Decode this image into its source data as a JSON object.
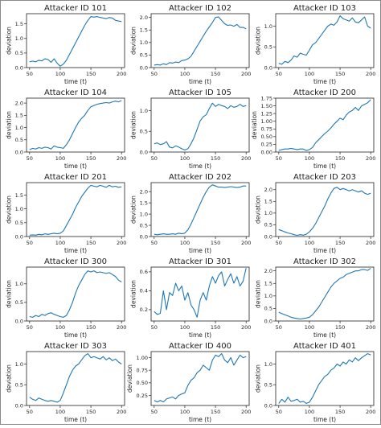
{
  "colors": {
    "line": "#1f77b4",
    "axes": "#222222",
    "background": "#ffffff"
  },
  "chart_data": [
    {
      "type": "line",
      "title": "Attacker ID 101",
      "xlabel": "time (t)",
      "ylabel": "deviation",
      "xlim": [
        45,
        205
      ],
      "ylim": [
        0,
        1.85
      ],
      "x_ticks": [
        "50",
        "100",
        "150",
        "200"
      ],
      "y_ticks": [
        "0.0",
        "0.5",
        "1.0",
        "1.5"
      ],
      "x": [
        50,
        55,
        60,
        65,
        70,
        75,
        80,
        85,
        90,
        95,
        100,
        105,
        110,
        115,
        120,
        125,
        130,
        135,
        140,
        145,
        150,
        155,
        160,
        165,
        170,
        175,
        180,
        185,
        190,
        195,
        200
      ],
      "y": [
        0.2,
        0.22,
        0.2,
        0.25,
        0.23,
        0.3,
        0.28,
        0.18,
        0.3,
        0.15,
        0.05,
        0.12,
        0.25,
        0.45,
        0.65,
        0.85,
        1.05,
        1.25,
        1.45,
        1.62,
        1.75,
        1.73,
        1.75,
        1.72,
        1.7,
        1.68,
        1.72,
        1.7,
        1.62,
        1.6,
        1.58
      ]
    },
    {
      "type": "line",
      "title": "Attacker ID 102",
      "xlabel": "time (t)",
      "ylabel": "deviation",
      "xlim": [
        45,
        205
      ],
      "ylim": [
        0,
        2.15
      ],
      "x_ticks": [
        "50",
        "100",
        "150",
        "200"
      ],
      "y_ticks": [
        "0.0",
        "0.5",
        "1.0",
        "1.5",
        "2.0"
      ],
      "x": [
        50,
        55,
        60,
        65,
        70,
        75,
        80,
        85,
        90,
        95,
        100,
        105,
        110,
        115,
        120,
        125,
        130,
        135,
        140,
        145,
        150,
        155,
        160,
        165,
        170,
        175,
        180,
        185,
        190,
        195,
        200
      ],
      "y": [
        0.1,
        0.12,
        0.1,
        0.15,
        0.12,
        0.2,
        0.18,
        0.22,
        0.2,
        0.28,
        0.3,
        0.35,
        0.45,
        0.65,
        0.85,
        1.05,
        1.25,
        1.45,
        1.62,
        1.8,
        2.0,
        2.02,
        1.88,
        1.75,
        1.68,
        1.7,
        1.65,
        1.72,
        1.6,
        1.6,
        1.55
      ]
    },
    {
      "type": "line",
      "title": "Attacker ID 103",
      "xlabel": "time (t)",
      "ylabel": "deviation",
      "xlim": [
        45,
        205
      ],
      "ylim": [
        0,
        1.3
      ],
      "x_ticks": [
        "50",
        "100",
        "150",
        "200"
      ],
      "y_ticks": [
        "0.0",
        "0.5",
        "1.0"
      ],
      "x": [
        50,
        55,
        60,
        65,
        70,
        75,
        80,
        85,
        90,
        95,
        100,
        105,
        110,
        115,
        120,
        125,
        130,
        135,
        140,
        145,
        150,
        155,
        160,
        165,
        170,
        175,
        180,
        185,
        190,
        195,
        200
      ],
      "y": [
        0.1,
        0.08,
        0.15,
        0.12,
        0.18,
        0.28,
        0.25,
        0.35,
        0.32,
        0.3,
        0.42,
        0.55,
        0.6,
        0.7,
        0.8,
        0.9,
        1.0,
        1.05,
        1.02,
        1.1,
        1.25,
        1.18,
        1.15,
        1.12,
        1.2,
        1.1,
        1.08,
        1.15,
        1.22,
        1.0,
        0.95
      ]
    },
    {
      "type": "line",
      "title": "Attacker ID 104",
      "xlabel": "time (t)",
      "ylabel": "deviation",
      "xlim": [
        45,
        205
      ],
      "ylim": [
        0,
        2.2
      ],
      "x_ticks": [
        "50",
        "100",
        "150",
        "200"
      ],
      "y_ticks": [
        "0.0",
        "0.5",
        "1.0",
        "1.5",
        "2.0"
      ],
      "x": [
        50,
        55,
        60,
        65,
        70,
        75,
        80,
        85,
        90,
        95,
        100,
        105,
        110,
        115,
        120,
        125,
        130,
        135,
        140,
        145,
        150,
        155,
        160,
        165,
        170,
        175,
        180,
        185,
        190,
        195,
        200
      ],
      "y": [
        0.1,
        0.15,
        0.12,
        0.18,
        0.15,
        0.2,
        0.18,
        0.12,
        0.25,
        0.2,
        0.18,
        0.15,
        0.3,
        0.5,
        0.75,
        1.0,
        1.22,
        1.38,
        1.5,
        1.7,
        1.85,
        1.9,
        1.95,
        1.98,
        2.0,
        2.02,
        2.0,
        2.05,
        2.08,
        2.05,
        2.1
      ]
    },
    {
      "type": "line",
      "title": "Attacker ID 105",
      "xlabel": "time (t)",
      "ylabel": "deviation",
      "xlim": [
        45,
        205
      ],
      "ylim": [
        0,
        1.3
      ],
      "x_ticks": [
        "50",
        "100",
        "150",
        "200"
      ],
      "y_ticks": [
        "0.0",
        "0.5",
        "1.0"
      ],
      "x": [
        50,
        55,
        60,
        65,
        70,
        75,
        80,
        85,
        90,
        95,
        100,
        105,
        110,
        115,
        120,
        125,
        130,
        135,
        140,
        145,
        150,
        155,
        160,
        165,
        170,
        175,
        180,
        185,
        190,
        195,
        200
      ],
      "y": [
        0.2,
        0.22,
        0.18,
        0.2,
        0.25,
        0.12,
        0.1,
        0.15,
        0.12,
        0.08,
        0.05,
        0.08,
        0.2,
        0.35,
        0.55,
        0.75,
        0.85,
        0.9,
        1.05,
        1.18,
        1.1,
        1.15,
        1.12,
        1.1,
        1.05,
        1.12,
        1.08,
        1.1,
        1.15,
        1.1,
        1.12
      ]
    },
    {
      "type": "line",
      "title": "Attacker ID 200",
      "xlabel": "time (t)",
      "ylabel": "deviation",
      "xlim": [
        45,
        205
      ],
      "ylim": [
        0,
        1.75
      ],
      "x_ticks": [
        "50",
        "100",
        "150",
        "200"
      ],
      "y_ticks": [
        "0.00",
        "0.25",
        "0.50",
        "0.75",
        "1.00",
        "1.25",
        "1.50",
        "1.75"
      ],
      "x": [
        50,
        55,
        60,
        65,
        70,
        75,
        80,
        85,
        90,
        95,
        100,
        105,
        110,
        115,
        120,
        125,
        130,
        135,
        140,
        145,
        150,
        155,
        160,
        165,
        170,
        175,
        180,
        185,
        190,
        195,
        200
      ],
      "y": [
        0.05,
        0.08,
        0.1,
        0.1,
        0.12,
        0.1,
        0.08,
        0.1,
        0.1,
        0.05,
        0.08,
        0.15,
        0.3,
        0.4,
        0.5,
        0.6,
        0.68,
        0.78,
        0.9,
        1.0,
        1.1,
        1.05,
        1.2,
        1.3,
        1.35,
        1.45,
        1.35,
        1.5,
        1.55,
        1.6,
        1.7
      ]
    },
    {
      "type": "line",
      "title": "Attacker ID 201",
      "xlabel": "time (t)",
      "ylabel": "deviation",
      "xlim": [
        45,
        205
      ],
      "ylim": [
        0,
        1.95
      ],
      "x_ticks": [
        "50",
        "100",
        "150",
        "200"
      ],
      "y_ticks": [
        "0.0",
        "0.5",
        "1.0",
        "1.5"
      ],
      "x": [
        50,
        55,
        60,
        65,
        70,
        75,
        80,
        85,
        90,
        95,
        100,
        105,
        110,
        115,
        120,
        125,
        130,
        135,
        140,
        145,
        150,
        155,
        160,
        165,
        170,
        175,
        180,
        185,
        190,
        195,
        200
      ],
      "y": [
        0.05,
        0.06,
        0.05,
        0.08,
        0.06,
        0.1,
        0.08,
        0.1,
        0.12,
        0.1,
        0.12,
        0.2,
        0.4,
        0.6,
        0.8,
        1.05,
        1.25,
        1.45,
        1.6,
        1.75,
        1.85,
        1.82,
        1.8,
        1.85,
        1.82,
        1.78,
        1.85,
        1.8,
        1.82,
        1.78,
        1.8
      ]
    },
    {
      "type": "line",
      "title": "Attacker ID 202",
      "xlabel": "time (t)",
      "ylabel": "deviation",
      "xlim": [
        45,
        205
      ],
      "ylim": [
        0,
        2.4
      ],
      "x_ticks": [
        "50",
        "100",
        "150",
        "200"
      ],
      "y_ticks": [
        "0.0",
        "0.5",
        "1.0",
        "1.5",
        "2.0"
      ],
      "x": [
        50,
        55,
        60,
        65,
        70,
        75,
        80,
        85,
        90,
        95,
        100,
        105,
        110,
        115,
        120,
        125,
        130,
        135,
        140,
        145,
        150,
        155,
        160,
        165,
        170,
        175,
        180,
        185,
        190,
        195,
        200
      ],
      "y": [
        0.1,
        0.08,
        0.1,
        0.12,
        0.1,
        0.1,
        0.12,
        0.1,
        0.15,
        0.12,
        0.15,
        0.3,
        0.55,
        0.85,
        1.15,
        1.45,
        1.75,
        2.0,
        2.2,
        2.3,
        2.25,
        2.2,
        2.2,
        2.18,
        2.2,
        2.22,
        2.2,
        2.18,
        2.2,
        2.25,
        2.25
      ]
    },
    {
      "type": "line",
      "title": "Attacker ID 203",
      "xlabel": "time (t)",
      "ylabel": "deviation",
      "xlim": [
        45,
        205
      ],
      "ylim": [
        0,
        2.3
      ],
      "x_ticks": [
        "50",
        "100",
        "150",
        "200"
      ],
      "y_ticks": [
        "0.0",
        "0.5",
        "1.0",
        "1.5",
        "2.0"
      ],
      "x": [
        50,
        55,
        60,
        65,
        70,
        75,
        80,
        85,
        90,
        95,
        100,
        105,
        110,
        115,
        120,
        125,
        130,
        135,
        140,
        145,
        150,
        155,
        160,
        165,
        170,
        175,
        180,
        185,
        190,
        195,
        200
      ],
      "y": [
        0.3,
        0.25,
        0.2,
        0.15,
        0.12,
        0.08,
        0.05,
        0.08,
        0.06,
        0.1,
        0.2,
        0.35,
        0.55,
        0.8,
        1.05,
        1.3,
        1.6,
        1.85,
        2.05,
        2.1,
        2.0,
        2.05,
        2.0,
        1.95,
        2.0,
        1.95,
        1.9,
        1.95,
        1.85,
        1.8,
        1.85
      ]
    },
    {
      "type": "line",
      "title": "Attacker ID 300",
      "xlabel": "time (t)",
      "ylabel": "deviation",
      "xlim": [
        45,
        205
      ],
      "ylim": [
        0,
        1.45
      ],
      "x_ticks": [
        "50",
        "100",
        "150",
        "200"
      ],
      "y_ticks": [
        "0.0",
        "0.5",
        "1.0"
      ],
      "x": [
        50,
        55,
        60,
        65,
        70,
        75,
        80,
        85,
        90,
        95,
        100,
        105,
        110,
        115,
        120,
        125,
        130,
        135,
        140,
        145,
        150,
        155,
        160,
        165,
        170,
        175,
        180,
        185,
        190,
        195,
        200
      ],
      "y": [
        0.12,
        0.1,
        0.15,
        0.12,
        0.18,
        0.15,
        0.2,
        0.22,
        0.18,
        0.15,
        0.12,
        0.1,
        0.15,
        0.3,
        0.5,
        0.75,
        0.95,
        1.1,
        1.25,
        1.35,
        1.32,
        1.35,
        1.3,
        1.32,
        1.3,
        1.28,
        1.3,
        1.25,
        1.2,
        1.1,
        1.05
      ]
    },
    {
      "type": "line",
      "title": "Attacker ID 301",
      "xlabel": "time (t)",
      "ylabel": "deviation",
      "xlim": [
        45,
        205
      ],
      "ylim": [
        0.08,
        0.65
      ],
      "x_ticks": [
        "50",
        "100",
        "150",
        "200"
      ],
      "y_ticks": [
        "0.2",
        "0.4",
        "0.6"
      ],
      "x": [
        50,
        55,
        60,
        65,
        70,
        75,
        80,
        85,
        90,
        95,
        100,
        105,
        110,
        115,
        120,
        125,
        130,
        135,
        140,
        145,
        150,
        155,
        160,
        165,
        170,
        175,
        180,
        185,
        190,
        195,
        200
      ],
      "y": [
        0.18,
        0.15,
        0.16,
        0.4,
        0.2,
        0.38,
        0.35,
        0.48,
        0.4,
        0.45,
        0.3,
        0.38,
        0.25,
        0.2,
        0.12,
        0.3,
        0.38,
        0.3,
        0.45,
        0.55,
        0.48,
        0.56,
        0.6,
        0.45,
        0.52,
        0.58,
        0.48,
        0.55,
        0.45,
        0.5,
        0.64
      ]
    },
    {
      "type": "line",
      "title": "Attacker ID 302",
      "xlabel": "time (t)",
      "ylabel": "deviation",
      "xlim": [
        45,
        205
      ],
      "ylim": [
        0,
        2.15
      ],
      "x_ticks": [
        "50",
        "100",
        "150",
        "200"
      ],
      "y_ticks": [
        "0.0",
        "0.5",
        "1.0",
        "1.5",
        "2.0"
      ],
      "x": [
        50,
        55,
        60,
        65,
        70,
        75,
        80,
        85,
        90,
        95,
        100,
        105,
        110,
        115,
        120,
        125,
        130,
        135,
        140,
        145,
        150,
        155,
        160,
        165,
        170,
        175,
        180,
        185,
        190,
        195,
        200
      ],
      "y": [
        0.35,
        0.3,
        0.25,
        0.2,
        0.15,
        0.12,
        0.1,
        0.08,
        0.1,
        0.12,
        0.15,
        0.25,
        0.4,
        0.55,
        0.75,
        0.95,
        1.15,
        1.35,
        1.5,
        1.6,
        1.7,
        1.75,
        1.85,
        1.9,
        1.95,
        2.0,
        2.0,
        2.05,
        2.05,
        2.02,
        2.1
      ]
    },
    {
      "type": "line",
      "title": "Attacker ID 303",
      "xlabel": "time (t)",
      "ylabel": "deviation",
      "xlim": [
        45,
        205
      ],
      "ylim": [
        0,
        1.3
      ],
      "x_ticks": [
        "50",
        "100",
        "150",
        "200"
      ],
      "y_ticks": [
        "0.0",
        "0.5",
        "1.0"
      ],
      "x": [
        50,
        55,
        60,
        65,
        70,
        75,
        80,
        85,
        90,
        95,
        100,
        105,
        110,
        115,
        120,
        125,
        130,
        135,
        140,
        145,
        150,
        155,
        160,
        165,
        170,
        175,
        180,
        185,
        190,
        195,
        200
      ],
      "y": [
        0.2,
        0.15,
        0.12,
        0.18,
        0.15,
        0.12,
        0.1,
        0.12,
        0.1,
        0.08,
        0.12,
        0.3,
        0.5,
        0.7,
        0.85,
        0.95,
        1.0,
        1.1,
        1.2,
        1.25,
        1.15,
        1.18,
        1.15,
        1.12,
        1.18,
        1.1,
        1.15,
        1.08,
        1.12,
        1.05,
        1.0
      ]
    },
    {
      "type": "line",
      "title": "Attacker ID 400",
      "xlabel": "time (t)",
      "ylabel": "deviation",
      "xlim": [
        45,
        205
      ],
      "ylim": [
        0.05,
        1.12
      ],
      "x_ticks": [
        "50",
        "100",
        "150",
        "200"
      ],
      "y_ticks": [
        "0.25",
        "0.50",
        "0.75",
        "1.00"
      ],
      "x": [
        50,
        55,
        60,
        65,
        70,
        75,
        80,
        85,
        90,
        95,
        100,
        105,
        110,
        115,
        120,
        125,
        130,
        135,
        140,
        145,
        150,
        155,
        160,
        165,
        170,
        175,
        180,
        185,
        190,
        195,
        200
      ],
      "y": [
        0.15,
        0.12,
        0.15,
        0.12,
        0.18,
        0.2,
        0.22,
        0.18,
        0.25,
        0.28,
        0.3,
        0.45,
        0.55,
        0.6,
        0.7,
        0.75,
        0.85,
        0.8,
        0.75,
        0.95,
        1.05,
        1.02,
        1.08,
        0.95,
        0.9,
        1.0,
        0.85,
        0.95,
        1.05,
        1.0,
        1.02
      ]
    },
    {
      "type": "line",
      "title": "Attacker ID 401",
      "xlabel": "time (t)",
      "ylabel": "deviation",
      "xlim": [
        45,
        205
      ],
      "ylim": [
        0,
        1.3
      ],
      "x_ticks": [
        "50",
        "100",
        "150",
        "200"
      ],
      "y_ticks": [
        "0.0",
        "0.5",
        "1.0"
      ],
      "x": [
        50,
        55,
        60,
        65,
        70,
        75,
        80,
        85,
        90,
        95,
        100,
        105,
        110,
        115,
        120,
        125,
        130,
        135,
        140,
        145,
        150,
        155,
        160,
        165,
        170,
        175,
        180,
        185,
        190,
        195,
        200
      ],
      "y": [
        0.05,
        0.15,
        0.08,
        0.2,
        0.1,
        0.12,
        0.15,
        0.08,
        0.1,
        0.05,
        0.08,
        0.2,
        0.35,
        0.5,
        0.6,
        0.7,
        0.75,
        0.85,
        0.9,
        1.0,
        0.95,
        1.05,
        1.0,
        1.1,
        1.05,
        1.15,
        1.08,
        1.15,
        1.2,
        1.25,
        1.22
      ]
    }
  ]
}
